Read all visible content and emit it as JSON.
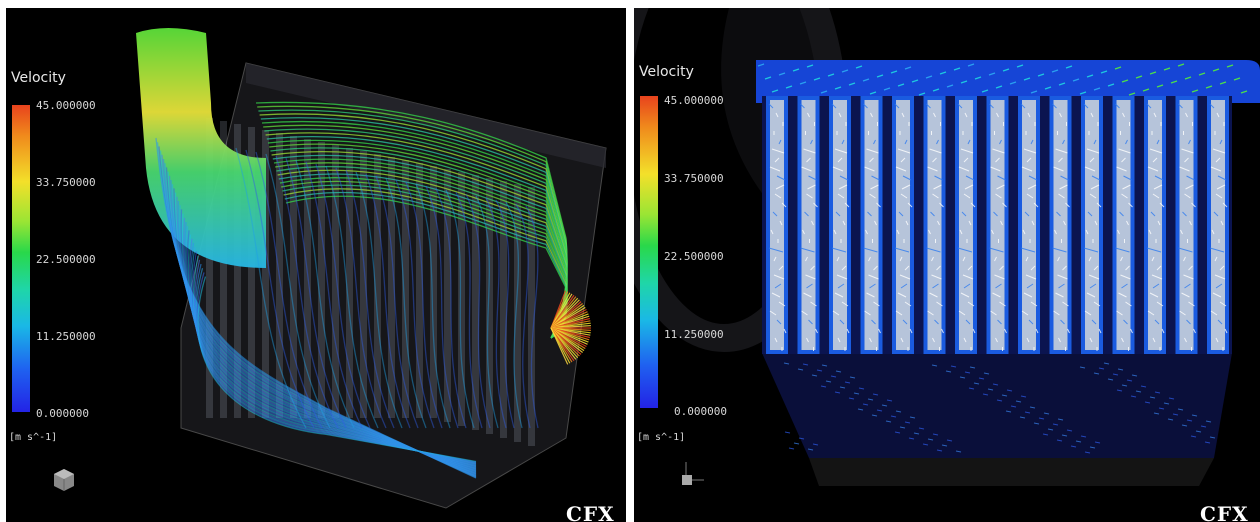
{
  "panels": [
    {
      "legend_title": "Velocity",
      "ticks": [
        "45.000000",
        "33.750000",
        "22.500000",
        "11.250000",
        "0.000000"
      ],
      "unit": "[m s^-1]",
      "brand": "CFX"
    },
    {
      "legend_title": "Velocity",
      "ticks": [
        "45.000000",
        "33.750000",
        "22.500000",
        "11.250000",
        "0.000000"
      ],
      "unit": "[m s^-1]",
      "brand": "CFX"
    }
  ],
  "colors": {
    "background": "#000000",
    "scale_max": "#e8431d",
    "scale_mid": "#29d84a",
    "scale_min": "#2323e6"
  },
  "icons": [
    "axis-triad-icon"
  ]
}
